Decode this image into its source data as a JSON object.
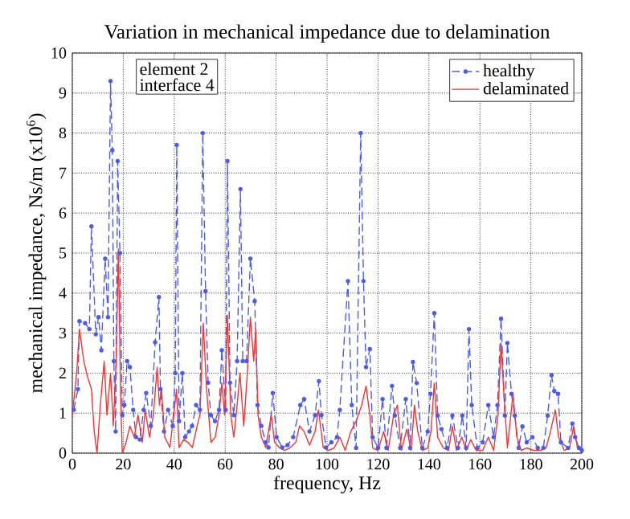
{
  "chart_data": {
    "type": "line",
    "title": "Variation in mechanical impedance due to delamination",
    "xlabel": "frequency, Hz",
    "ylabel": "mechanical impedance, Ns/m (x10$^{6}$)",
    "annotations": [
      "element  2",
      "interface  4"
    ],
    "xlim": [
      0,
      200
    ],
    "ylim": [
      0,
      10
    ],
    "xticks": [
      0,
      20,
      40,
      60,
      80,
      100,
      120,
      140,
      160,
      180,
      200
    ],
    "yticks": [
      0,
      1,
      2,
      3,
      4,
      5,
      6,
      7,
      8,
      9,
      10
    ],
    "grid": true,
    "legend": "top right",
    "series": [
      {
        "name": "healthy",
        "color": "#4a5cf0",
        "marker": "circle",
        "line_style": "dashed",
        "x": [
          0.6,
          2.2,
          2.8,
          5,
          6.7,
          7.5,
          9.2,
          10.3,
          11.4,
          12.9,
          14,
          15,
          15.7,
          16.3,
          17,
          17.8,
          18.7,
          19.6,
          20.4,
          21.5,
          22.6,
          23.9,
          25,
          26.5,
          28,
          29,
          30.8,
          32.5,
          34,
          34.6,
          36,
          37.6,
          39.4,
          40.4,
          41,
          41.9,
          43.2,
          44.3,
          45.8,
          47,
          48.6,
          50.1,
          51.2,
          52.3,
          53.3,
          54.4,
          56,
          57.6,
          58.7,
          60.2,
          60.9,
          61.9,
          63.4,
          64.7,
          66,
          66.9,
          68.4,
          69.9,
          71.6,
          72.7,
          74.2,
          75.9,
          77,
          78.7,
          80.2,
          82.4,
          84.5,
          86.7,
          89.5,
          91,
          93.1,
          95.3,
          96.8,
          97.8,
          99.6,
          101.7,
          103.9,
          105,
          108.2,
          109.7,
          111.4,
          113.2,
          114.3,
          115.3,
          116.8,
          117.9,
          120,
          121.8,
          123.3,
          125.5,
          126.6,
          128.7,
          130.9,
          132.6,
          133.7,
          135.2,
          137.4,
          139.5,
          140.6,
          142.1,
          143.4,
          144.9,
          147.1,
          149.2,
          151.4,
          153.1,
          154.6,
          155.7,
          156.8,
          159,
          161.1,
          163.3,
          165.4,
          166.9,
          168.3,
          169.8,
          170.8,
          172.4,
          173.7,
          175.2,
          176.7,
          178.4,
          180.6,
          182.7,
          184.9,
          186.6,
          188.1,
          189.2,
          190.7,
          191.8,
          194.6,
          196.3,
          197.4,
          198.9,
          200
        ],
        "values": [
          1.08,
          1.6,
          3.3,
          3.25,
          3.1,
          5.67,
          2.97,
          3.4,
          2.57,
          4.86,
          3.4,
          9.3,
          7.57,
          2.3,
          0.54,
          7.3,
          5,
          0.95,
          1.2,
          2.3,
          2.15,
          1.08,
          0.4,
          0.34,
          1.08,
          1.5,
          0.68,
          2.77,
          3.9,
          1.6,
          0.54,
          1.08,
          0.68,
          2,
          7.7,
          0.8,
          2,
          0.4,
          0.54,
          0.68,
          1.2,
          1.08,
          8,
          4.05,
          1.76,
          0.95,
          0.8,
          1.08,
          2.57,
          1.08,
          7.3,
          1.76,
          0.95,
          2.3,
          6.6,
          2.3,
          2.3,
          4.86,
          3.8,
          1.2,
          0.68,
          0.27,
          0.14,
          1.5,
          0.4,
          0.14,
          0.2,
          0.4,
          1.2,
          1.35,
          0.54,
          0.95,
          1.8,
          0.95,
          0.14,
          0.27,
          0.4,
          1.08,
          4.3,
          1.2,
          0.13,
          8,
          4.3,
          2.15,
          2.6,
          0.4,
          0.13,
          1.35,
          0.13,
          1.68,
          0.94,
          0.13,
          1.35,
          0.13,
          2.28,
          1.75,
          0.13,
          0.54,
          1.48,
          3.5,
          0.94,
          0.6,
          0.13,
          0.94,
          0.13,
          0.94,
          0.13,
          3.1,
          1.2,
          0.13,
          0.27,
          1.2,
          0.4,
          1.2,
          3.36,
          0.94,
          2.75,
          1.48,
          0.94,
          0.13,
          0.67,
          0.27,
          0.4,
          0.13,
          0.13,
          0.94,
          1.95,
          1.55,
          1.48,
          0.27,
          0.13,
          0.74,
          0.4,
          0.13,
          0.07
        ]
      },
      {
        "name": "delaminated",
        "color": "#ff3030",
        "x": [
          0,
          1.7,
          2.8,
          4.5,
          6,
          7.5,
          8.6,
          9.7,
          11,
          12.5,
          13.6,
          15,
          16.1,
          17.2,
          18.1,
          18.9,
          19.6,
          21.1,
          22.6,
          24.3,
          25.8,
          27.5,
          28.6,
          30.3,
          31.8,
          33.3,
          34.2,
          35,
          36.3,
          38.3,
          39.8,
          40.9,
          41.9,
          43.7,
          45.4,
          47.1,
          49,
          50.1,
          51.4,
          52.7,
          54.4,
          56.1,
          57.6,
          58.7,
          59.8,
          60.9,
          62.2,
          63.4,
          64.7,
          65.8,
          67.3,
          68.6,
          69.9,
          71.2,
          72,
          72.9,
          74.2,
          75.9,
          78.1,
          79.4,
          81.3,
          83.4,
          85.6,
          87.7,
          89.2,
          91,
          93.1,
          95.3,
          96.6,
          98.5,
          100.6,
          102.8,
          105,
          107.1,
          109.3,
          111.4,
          113.6,
          115.3,
          116.8,
          117.9,
          120,
          122.2,
          124,
          126.1,
          127.6,
          129.2,
          131.3,
          133,
          134.3,
          135.6,
          137.4,
          139.5,
          140.8,
          142.1,
          143.4,
          145.6,
          147.7,
          149.2,
          150.8,
          152.9,
          154.6,
          156.4,
          158.5,
          161.1,
          163.3,
          165.4,
          167.1,
          168.3,
          169.3,
          170.8,
          173,
          174.5,
          176.2,
          178.4,
          181,
          183.8,
          186,
          187.7,
          189.6,
          190.9,
          193.1,
          195.2,
          196.8,
          198.3,
          200
        ],
        "values": [
          0.95,
          2,
          3.1,
          2.3,
          1.9,
          1.6,
          0.54,
          0,
          1.2,
          2.3,
          0.95,
          2,
          0.68,
          2.3,
          5.1,
          1.6,
          0,
          0.27,
          0.68,
          0.4,
          0.95,
          0.27,
          1.08,
          0.4,
          0.95,
          2.15,
          1.2,
          1.6,
          0.4,
          0.14,
          0.95,
          1.6,
          0.14,
          0.34,
          0.27,
          0.14,
          0.68,
          0.95,
          3.25,
          1.6,
          0.27,
          0.4,
          0.95,
          1.76,
          0.95,
          3.45,
          0.95,
          0.4,
          1.2,
          2,
          0.68,
          1.9,
          3.4,
          2.3,
          3.1,
          0.95,
          0.4,
          0.14,
          0.95,
          0.27,
          0.14,
          0.07,
          0.14,
          0.27,
          0.68,
          0.54,
          0.2,
          0.54,
          1.08,
          0.14,
          0.07,
          0.13,
          0.4,
          0.07,
          0.54,
          0.8,
          1.2,
          1.68,
          0.94,
          0.13,
          0.07,
          0.54,
          0.07,
          0.94,
          1.2,
          0.07,
          0.6,
          0.07,
          1.2,
          0.54,
          0.07,
          0.13,
          0.54,
          1.75,
          0.4,
          0.13,
          0.07,
          0.67,
          0.07,
          0.4,
          0.07,
          0.34,
          0.07,
          0.07,
          0.4,
          0.07,
          0.94,
          2.75,
          1.6,
          0.13,
          1.48,
          0.4,
          0.07,
          0.13,
          0.07,
          0.07,
          0.13,
          0.54,
          1.08,
          0.4,
          0.07,
          0.13,
          0.67,
          0.13,
          0.07
        ]
      }
    ]
  }
}
